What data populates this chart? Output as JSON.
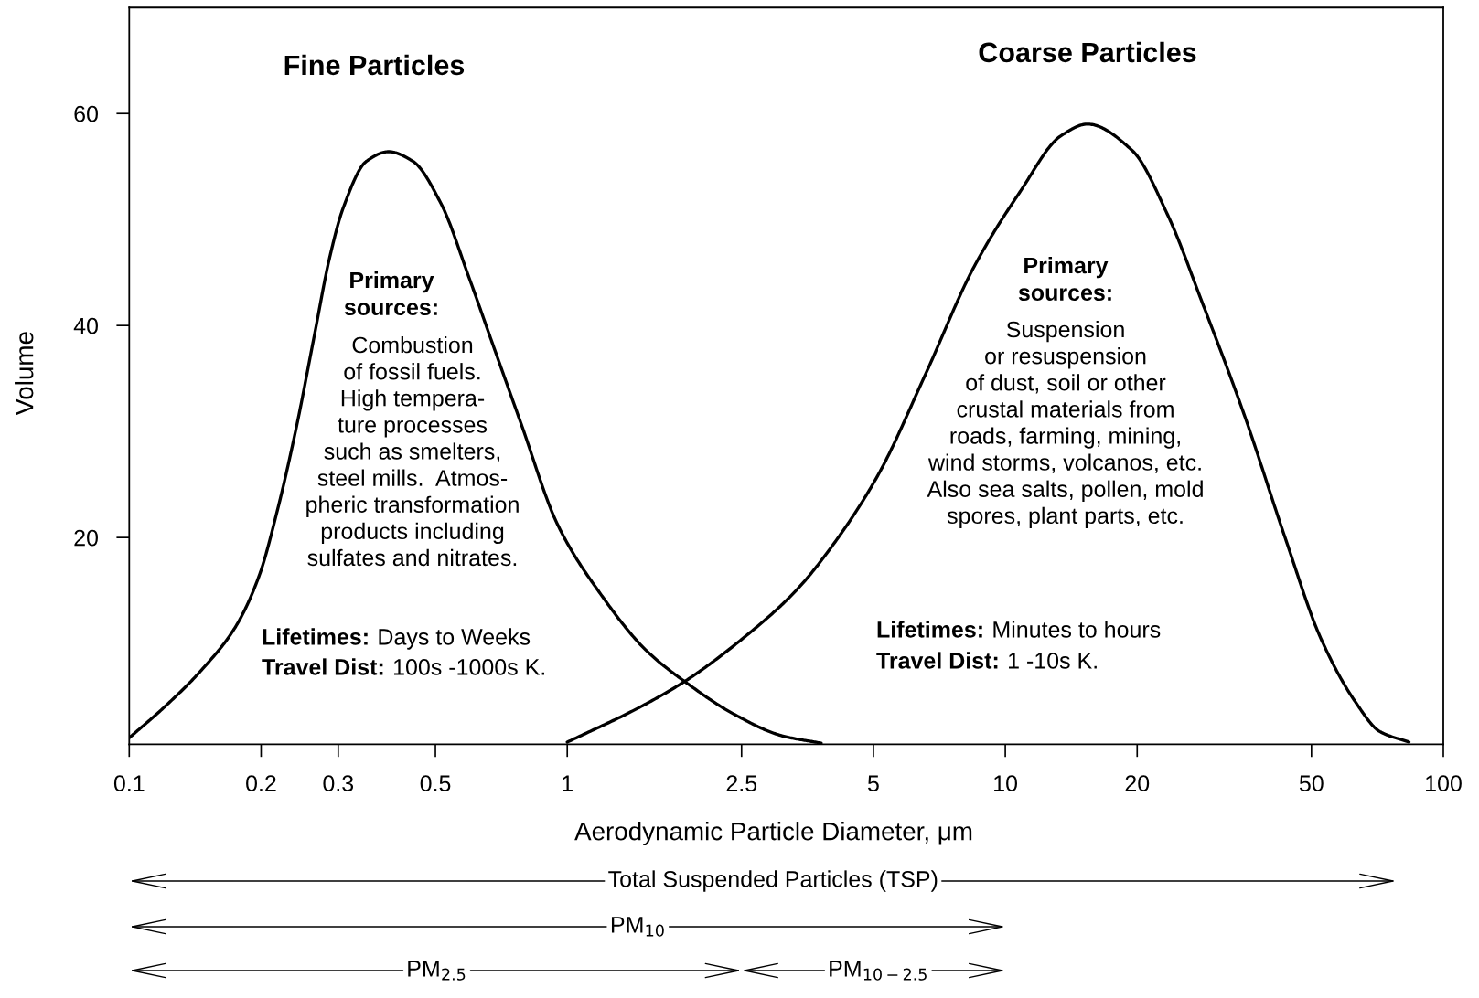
{
  "chart_data": {
    "type": "line",
    "xlabel": "Aerodynamic Particle Diameter, μm",
    "ylabel": "Volume",
    "log": "x",
    "xlim": [
      0.1,
      100
    ],
    "ylim": [
      0.5,
      70
    ],
    "xticks": [
      0.1,
      0.2,
      0.3,
      0.5,
      1,
      2.5,
      5,
      10,
      20,
      50,
      100
    ],
    "yticks": [
      20,
      40,
      60
    ],
    "grid": false,
    "line_style": "solid",
    "series": [
      {
        "color": "#000000",
        "x": [
          0.1,
          0.121,
          0.147,
          0.175,
          0.198,
          0.218,
          0.241,
          0.265,
          0.286,
          0.308,
          0.348,
          0.391,
          0.444,
          0.515,
          0.597,
          0.675,
          0.782,
          0.951,
          1.19,
          1.51,
          1.87,
          2.41,
          3.09,
          3.8
        ],
        "values": [
          1.1,
          4.1,
          7.6,
          11.6,
          16.4,
          22.6,
          30.5,
          39.2,
          46.2,
          51.1,
          55.5,
          56.4,
          55.5,
          51.5,
          44.5,
          38.3,
          30.9,
          21.2,
          14.7,
          9.4,
          6.3,
          3.3,
          1.3,
          0.6
        ]
      },
      {
        "color": "#000000",
        "x": [
          1.0,
          1.45,
          1.85,
          2.52,
          3.33,
          4.14,
          5.14,
          6.59,
          8.45,
          10.8,
          13.4,
          15.4,
          19.5,
          23.5,
          28.2,
          35.1,
          43.6,
          52.5,
          63.2,
          71.6,
          83.5
        ],
        "values": [
          0.7,
          3.9,
          6.4,
          10.5,
          15.0,
          19.9,
          26.0,
          35.5,
          45.4,
          52.6,
          57.9,
          59.0,
          56.5,
          50.4,
          42.1,
          31.6,
          19.9,
          10.5,
          4.4,
          1.7,
          0.7
        ]
      }
    ],
    "annotations": [
      "Fine Particles",
      "Coarse Particles",
      "Primary\nsources:",
      "Combustion\nof fossil fuels.\nHigh tempera-\nture processes\nsuch as smelters,\nsteel mills.  Atmos-\npheric transformation\nproducts including\nsulfates and nitrates.",
      "Lifetimes:",
      "Days to Weeks",
      "Travel Dist:",
      "100s -1000s K.",
      "Primary\nsources:",
      "Suspension\nor resuspension\nof dust, soil or other\ncrustal materials from\nroads, farming, mining,\nwind storms, volcanos, etc.\nAlso sea salts, pollen, mold\nspores, plant parts, etc.",
      "Lifetimes:",
      "Minutes to hours",
      "Travel Dist:",
      "1 -10s K.",
      "Total Suspended Particles (TSP)",
      "PM$_{10}$",
      "PM$_{2.5}$",
      "PM$_{10−2.5}$"
    ]
  }
}
